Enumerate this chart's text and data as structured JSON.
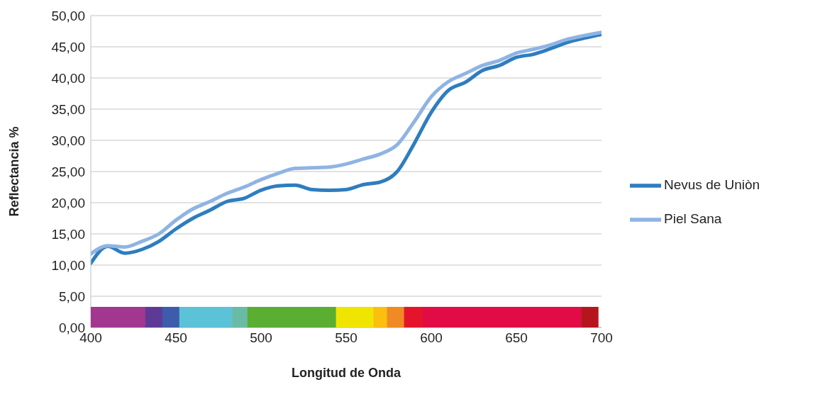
{
  "chart_data": {
    "type": "line",
    "xlabel": "Longitud de Onda",
    "ylabel": "Reflectancia %",
    "x": [
      400,
      410,
      420,
      430,
      440,
      450,
      460,
      470,
      480,
      490,
      500,
      510,
      520,
      530,
      540,
      550,
      560,
      570,
      580,
      590,
      600,
      610,
      620,
      630,
      640,
      650,
      660,
      670,
      680,
      690,
      700
    ],
    "series": [
      {
        "name": "Nevus de Uniòn",
        "color": "#2e7dbf",
        "values": [
          10.3,
          13.0,
          11.9,
          12.5,
          13.8,
          15.8,
          17.5,
          18.8,
          20.2,
          20.7,
          22.0,
          22.7,
          22.8,
          22.1,
          22.0,
          22.1,
          22.9,
          23.3,
          25.0,
          29.5,
          34.5,
          38.0,
          39.3,
          41.2,
          42.0,
          43.3,
          43.8,
          44.7,
          45.7,
          46.4,
          47.0
        ]
      },
      {
        "name": "Piel Sana",
        "color": "#8fb4e3",
        "values": [
          11.8,
          13.1,
          12.9,
          13.8,
          15.0,
          17.2,
          19.0,
          20.2,
          21.5,
          22.5,
          23.7,
          24.7,
          25.5,
          25.6,
          25.7,
          26.2,
          27.0,
          27.8,
          29.3,
          33.0,
          37.0,
          39.4,
          40.7,
          42.0,
          42.8,
          44.0,
          44.6,
          45.3,
          46.2,
          46.8,
          47.3
        ]
      }
    ],
    "xlim": [
      400,
      700
    ],
    "xticks": [
      400,
      450,
      500,
      550,
      600,
      650,
      700
    ],
    "ylim": [
      0,
      50
    ],
    "yticks": [
      {
        "value": 0,
        "label": "0,00"
      },
      {
        "value": 5,
        "label": "5,00"
      },
      {
        "value": 10,
        "label": "10,00"
      },
      {
        "value": 15,
        "label": "15,00"
      },
      {
        "value": 20,
        "label": "20,00"
      },
      {
        "value": 25,
        "label": "25,00"
      },
      {
        "value": 30,
        "label": "30,00"
      },
      {
        "value": 35,
        "label": "35,00"
      },
      {
        "value": 40,
        "label": "40,00"
      },
      {
        "value": 45,
        "label": "45,00"
      },
      {
        "value": 50,
        "label": "50,00"
      }
    ],
    "grid": "y",
    "legend": "right",
    "marker": "none",
    "line_style": "solid"
  }
}
